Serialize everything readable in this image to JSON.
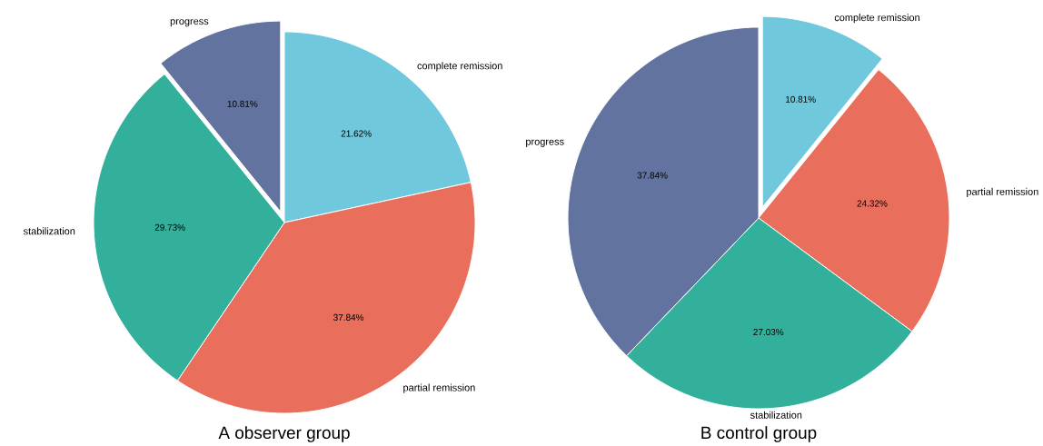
{
  "chart_data": [
    {
      "type": "pie",
      "title": "A   observer group",
      "categories": [
        "complete remission",
        "partial remission",
        "stabilization",
        "progress"
      ],
      "values": [
        21.62,
        37.84,
        29.73,
        10.81
      ],
      "colors": [
        "#70c8dc",
        "#e96e5c",
        "#33b09c",
        "#63739f"
      ],
      "value_labels": [
        "21.62%",
        "37.84%",
        "29.73%",
        "10.81%"
      ]
    },
    {
      "type": "pie",
      "title": "B   control  group",
      "categories": [
        "complete remission",
        "partial remission",
        "stabilization",
        "progress"
      ],
      "values": [
        10.81,
        24.32,
        27.03,
        37.84
      ],
      "colors": [
        "#70c8dc",
        "#e96e5c",
        "#33b09c",
        "#63739f"
      ],
      "value_labels": [
        "10.81%",
        "24.32%",
        "27.03%",
        "37.84%"
      ]
    }
  ]
}
